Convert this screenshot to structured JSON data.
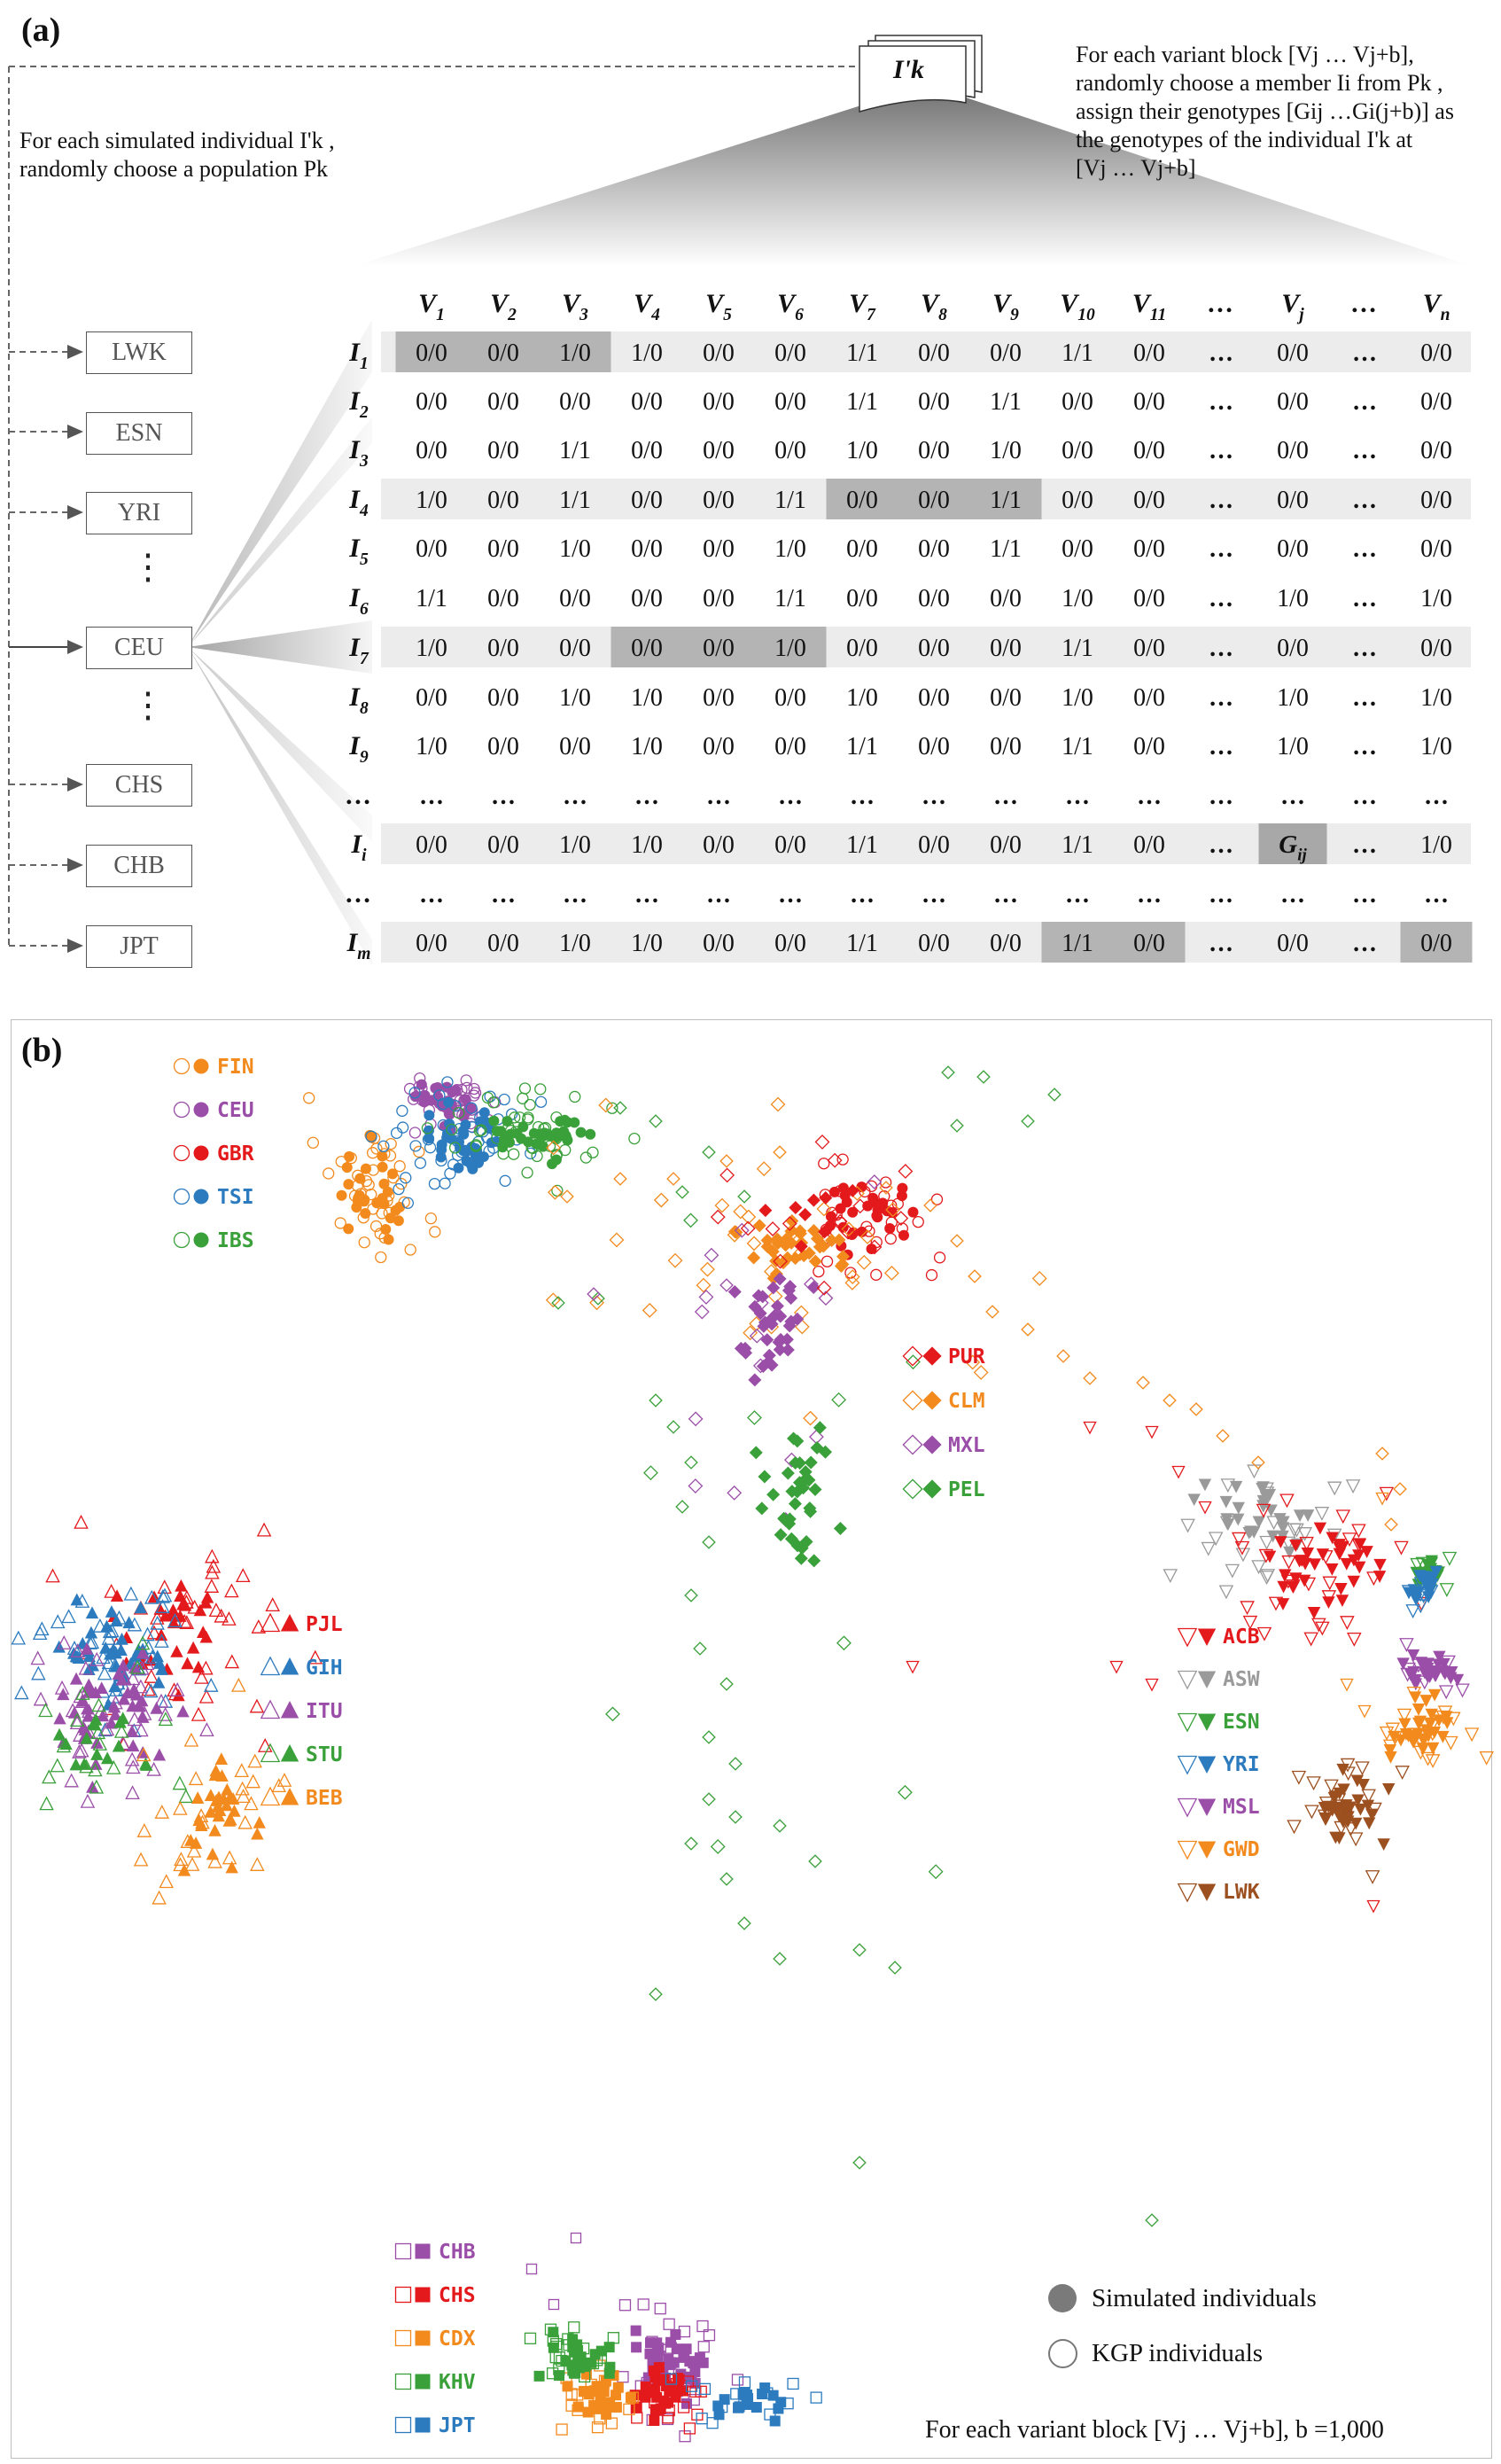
{
  "panel_a": {
    "label": "(a)",
    "doc_label": "I'k",
    "note_left": [
      "For each simulated individual I'k ,",
      "randomly choose a population Pk"
    ],
    "note_right": [
      "For each variant block [Vj … Vj+b],",
      "randomly choose a member Ii from Pk ,",
      "assign their genotypes [Gij …Gi(j+b)] as",
      "the genotypes of the individual I'k at",
      "[Vj … Vj+b]"
    ],
    "populations": [
      "LWK",
      "ESN",
      "YRI",
      "CEU",
      "CHS",
      "CHB",
      "JPT"
    ],
    "ellipsis": "⋮",
    "table": {
      "columns": [
        "V1",
        "V2",
        "V3",
        "V4",
        "V5",
        "V6",
        "V7",
        "V8",
        "V9",
        "V10",
        "V11",
        "…",
        "Vj",
        "…",
        "Vn"
      ],
      "rows": [
        {
          "label": "I1",
          "cells": [
            "0/0",
            "0/0",
            "1/0",
            "1/0",
            "0/0",
            "0/0",
            "1/1",
            "0/0",
            "0/0",
            "1/1",
            "0/0",
            "…",
            "0/0",
            "…",
            "0/0"
          ]
        },
        {
          "label": "I2",
          "cells": [
            "0/0",
            "0/0",
            "0/0",
            "0/0",
            "0/0",
            "0/0",
            "1/1",
            "0/0",
            "1/1",
            "0/0",
            "0/0",
            "…",
            "0/0",
            "…",
            "0/0"
          ]
        },
        {
          "label": "I3",
          "cells": [
            "0/0",
            "0/0",
            "1/1",
            "0/0",
            "0/0",
            "0/0",
            "1/0",
            "0/0",
            "1/0",
            "0/0",
            "0/0",
            "…",
            "0/0",
            "…",
            "0/0"
          ]
        },
        {
          "label": "I4",
          "cells": [
            "1/0",
            "0/0",
            "1/1",
            "0/0",
            "0/0",
            "1/1",
            "0/0",
            "0/0",
            "1/1",
            "0/0",
            "0/0",
            "…",
            "0/0",
            "…",
            "0/0"
          ]
        },
        {
          "label": "I5",
          "cells": [
            "0/0",
            "0/0",
            "1/0",
            "0/0",
            "0/0",
            "1/0",
            "0/0",
            "0/0",
            "1/1",
            "0/0",
            "0/0",
            "…",
            "0/0",
            "…",
            "0/0"
          ]
        },
        {
          "label": "I6",
          "cells": [
            "1/1",
            "0/0",
            "0/0",
            "0/0",
            "0/0",
            "1/1",
            "0/0",
            "0/0",
            "0/0",
            "1/0",
            "0/0",
            "…",
            "1/0",
            "…",
            "1/0"
          ]
        },
        {
          "label": "I7",
          "cells": [
            "1/0",
            "0/0",
            "0/0",
            "0/0",
            "0/0",
            "1/0",
            "0/0",
            "0/0",
            "0/0",
            "1/1",
            "0/0",
            "…",
            "0/0",
            "…",
            "0/0"
          ]
        },
        {
          "label": "I8",
          "cells": [
            "0/0",
            "0/0",
            "1/0",
            "1/0",
            "0/0",
            "0/0",
            "1/0",
            "0/0",
            "0/0",
            "1/0",
            "0/0",
            "…",
            "1/0",
            "…",
            "1/0"
          ]
        },
        {
          "label": "I9",
          "cells": [
            "1/0",
            "0/0",
            "0/0",
            "1/0",
            "0/0",
            "0/0",
            "1/1",
            "0/0",
            "0/0",
            "1/1",
            "0/0",
            "…",
            "1/0",
            "…",
            "1/0"
          ]
        },
        {
          "label": "…",
          "cells": [
            "…",
            "…",
            "…",
            "…",
            "…",
            "…",
            "…",
            "…",
            "…",
            "…",
            "…",
            "…",
            "…",
            "…",
            "…"
          ]
        },
        {
          "label": "Ii",
          "cells": [
            "0/0",
            "0/0",
            "1/0",
            "1/0",
            "0/0",
            "0/0",
            "1/1",
            "0/0",
            "0/0",
            "1/1",
            "0/0",
            "…",
            "Gij",
            "…",
            "1/0"
          ]
        },
        {
          "label": "…",
          "cells": [
            "…",
            "…",
            "…",
            "…",
            "…",
            "…",
            "…",
            "…",
            "…",
            "…",
            "…",
            "…",
            "…",
            "…",
            "…"
          ]
        },
        {
          "label": "Im",
          "cells": [
            "0/0",
            "0/0",
            "1/0",
            "1/0",
            "0/0",
            "0/0",
            "1/1",
            "0/0",
            "0/0",
            "1/1",
            "0/0",
            "…",
            "0/0",
            "…",
            "0/0"
          ]
        }
      ]
    }
  },
  "panel_b": {
    "label": "(b)",
    "legend_simulated": "Simulated individuals",
    "legend_kgp": "KGP individuals",
    "footer": "For each variant block [Vj … Vj+b], b =1,000",
    "groups": [
      {
        "shape": "circle",
        "items": [
          {
            "code": "FIN",
            "color": "#f28a1e"
          },
          {
            "code": "CEU",
            "color": "#9b4ea8"
          },
          {
            "code": "GBR",
            "color": "#e3191c"
          },
          {
            "code": "TSI",
            "color": "#2c7bbf"
          },
          {
            "code": "IBS",
            "color": "#3aa03a"
          }
        ]
      },
      {
        "shape": "diamond",
        "items": [
          {
            "code": "PUR",
            "color": "#e3191c"
          },
          {
            "code": "CLM",
            "color": "#f28a1e"
          },
          {
            "code": "MXL",
            "color": "#9b4ea8"
          },
          {
            "code": "PEL",
            "color": "#3aa03a"
          }
        ]
      },
      {
        "shape": "triangle",
        "items": [
          {
            "code": "PJL",
            "color": "#e3191c"
          },
          {
            "code": "GIH",
            "color": "#2c7bbf"
          },
          {
            "code": "ITU",
            "color": "#9b4ea8"
          },
          {
            "code": "STU",
            "color": "#3aa03a"
          },
          {
            "code": "BEB",
            "color": "#f28a1e"
          }
        ]
      },
      {
        "shape": "triangle-down",
        "items": [
          {
            "code": "ACB",
            "color": "#e3191c"
          },
          {
            "code": "ASW",
            "color": "#9a9a9a"
          },
          {
            "code": "ESN",
            "color": "#3aa03a"
          },
          {
            "code": "YRI",
            "color": "#2c7bbf"
          },
          {
            "code": "MSL",
            "color": "#9b4ea8"
          },
          {
            "code": "GWD",
            "color": "#f28a1e"
          },
          {
            "code": "LWK",
            "color": "#9c4f1f"
          }
        ]
      },
      {
        "shape": "square",
        "items": [
          {
            "code": "CHB",
            "color": "#9b4ea8"
          },
          {
            "code": "CHS",
            "color": "#e3191c"
          },
          {
            "code": "CDX",
            "color": "#f28a1e"
          },
          {
            "code": "KHV",
            "color": "#3aa03a"
          },
          {
            "code": "JPT",
            "color": "#2c7bbf"
          }
        ]
      }
    ]
  }
}
